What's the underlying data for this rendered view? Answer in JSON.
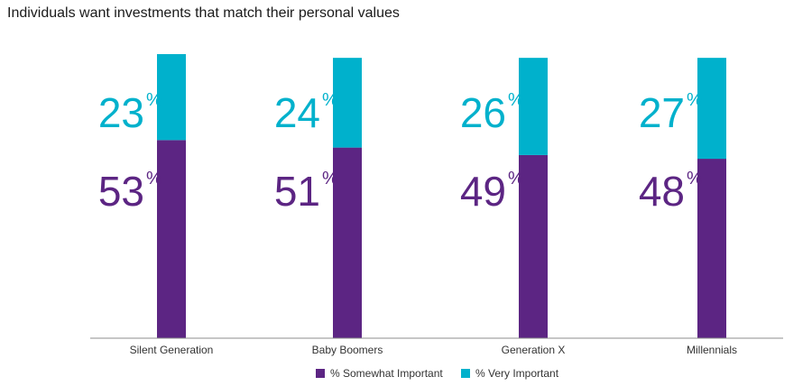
{
  "chart_data": {
    "type": "bar",
    "stacked": true,
    "title": "Individuals want investments that match their personal values",
    "categories": [
      "Silent Generation",
      "Baby Boomers",
      "Generation X",
      "Millennials"
    ],
    "series": [
      {
        "name": "% Somewhat Important",
        "values": [
          53,
          51,
          49,
          48
        ],
        "color": "#5c2583"
      },
      {
        "name": "% Very Important",
        "values": [
          23,
          24,
          26,
          27
        ],
        "color": "#00b1cc"
      }
    ],
    "value_suffix": "%",
    "ylim": [
      0,
      76
    ],
    "grid": false,
    "legend_position": "bottom-center"
  }
}
